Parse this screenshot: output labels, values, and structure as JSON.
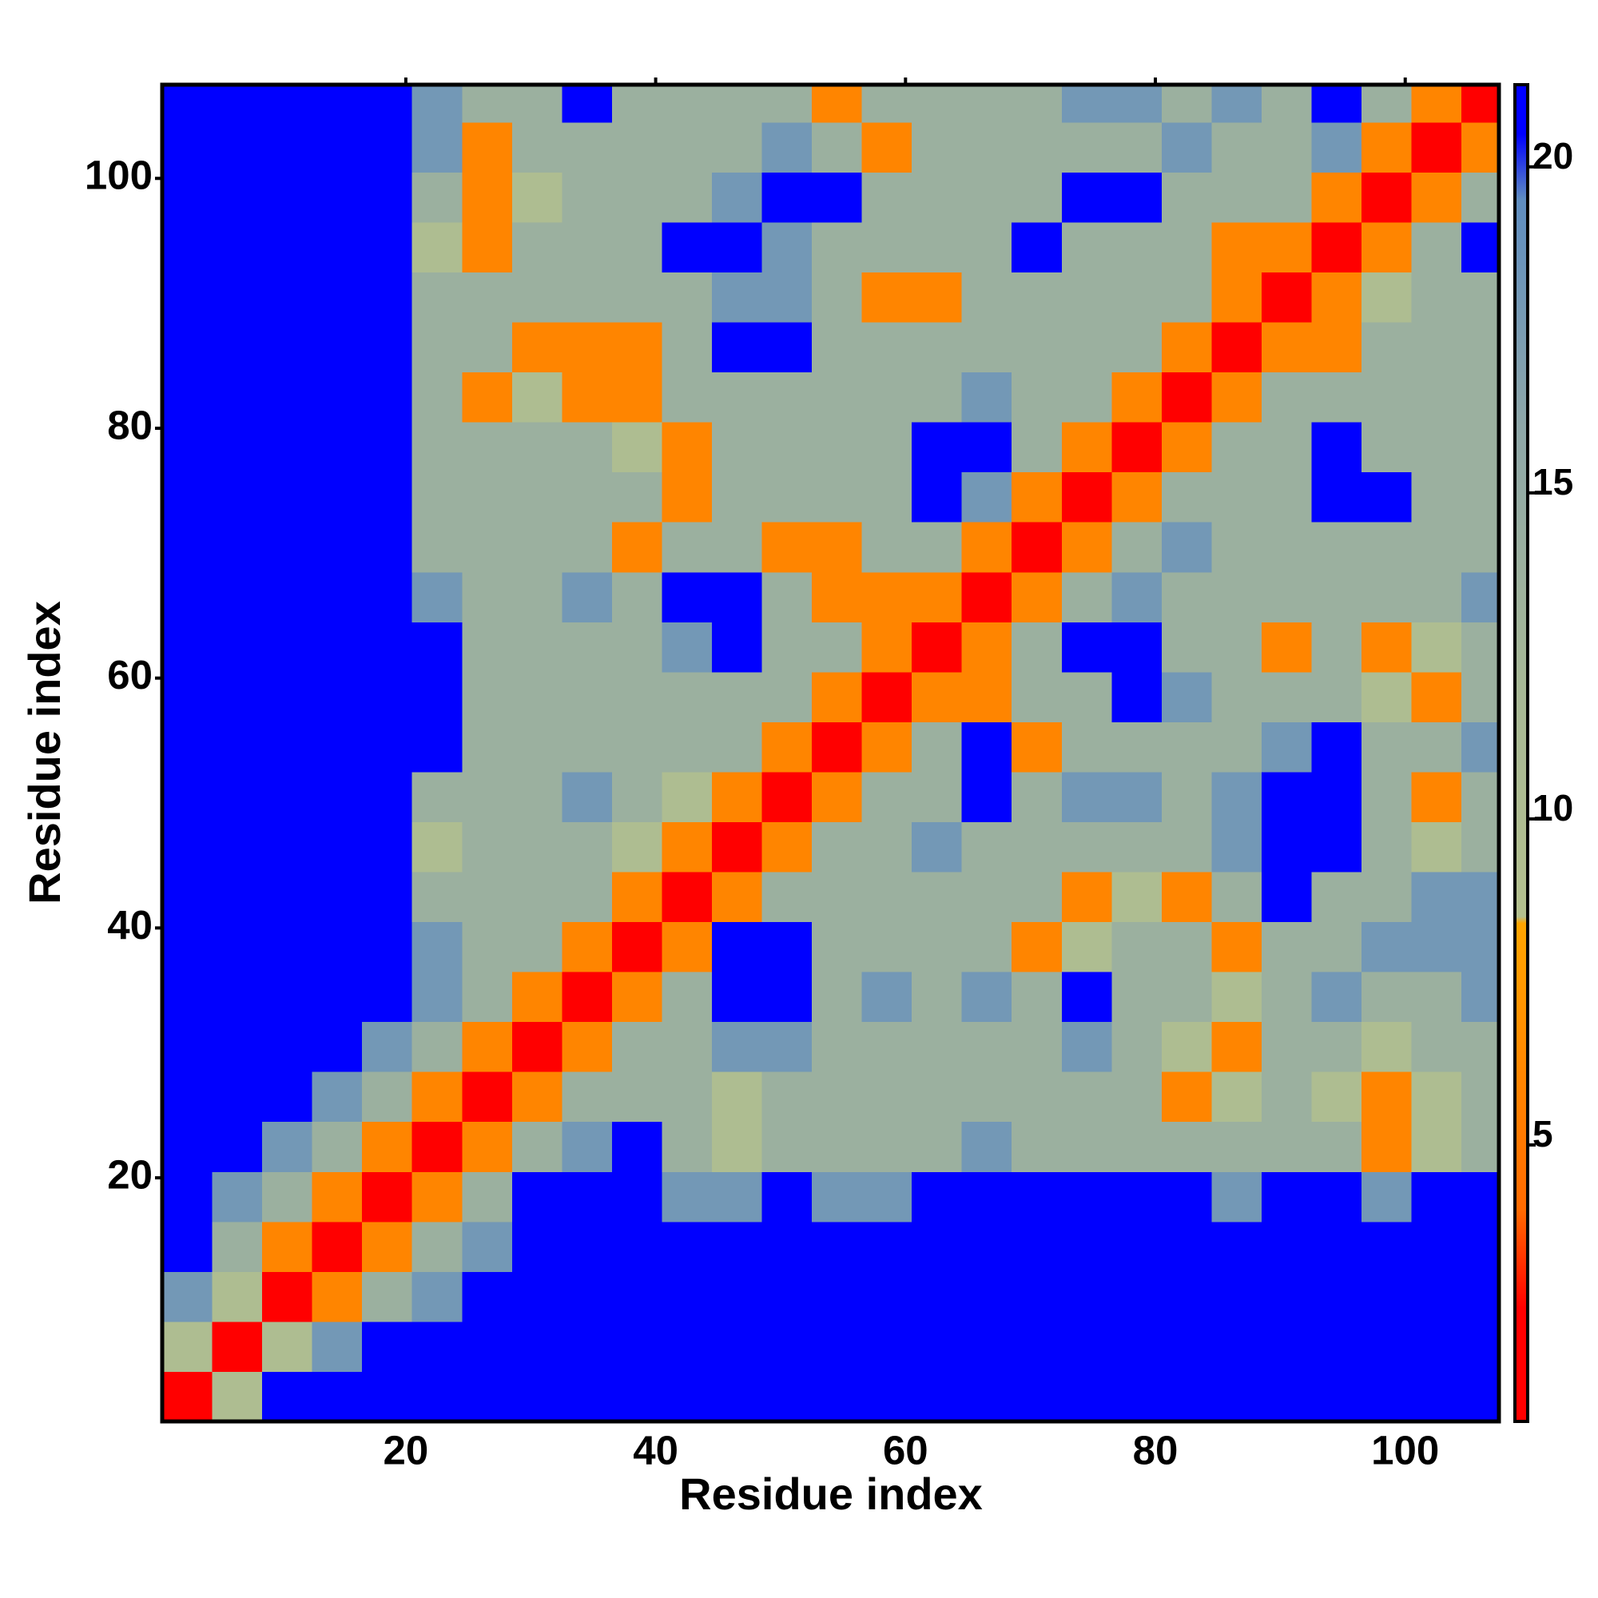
{
  "chart_data": {
    "type": "heatmap",
    "x_label": "Residue index",
    "y_label": "Residue index",
    "xlim": [
      0.5,
      107.5
    ],
    "ylim": [
      0.5,
      107.5
    ],
    "xticks": [
      20,
      40,
      60,
      80,
      100
    ],
    "yticks": [
      20,
      40,
      60,
      80,
      100
    ],
    "x_edges": [
      0.5,
      4.5,
      8.5,
      12.5,
      16.5,
      20.5,
      24.5,
      28.5,
      32.5,
      36.5,
      40.5,
      44.5,
      48.5,
      52.5,
      56.5,
      60.5,
      64.5,
      68.5,
      72.5,
      76.5,
      80.5,
      84.5,
      88.5,
      92.5,
      96.5,
      100.5,
      104.5,
      107.5
    ],
    "y_edges": [
      0.5,
      4.5,
      8.5,
      12.5,
      16.5,
      20.5,
      24.5,
      28.5,
      32.5,
      36.5,
      40.5,
      44.5,
      48.5,
      52.5,
      56.5,
      60.5,
      64.5,
      68.5,
      72.5,
      76.5,
      80.5,
      84.5,
      88.5,
      92.5,
      96.5,
      100.5,
      104.5,
      107.5
    ],
    "zlim": [
      0.76,
      21.26
    ],
    "colorbar_ticks": [
      5,
      10,
      15,
      20
    ],
    "colorscale": [
      [
        0.76,
        "#ff0000"
      ],
      [
        2.5,
        "#ff0000"
      ],
      [
        4,
        "#ff6a00"
      ],
      [
        8.4,
        "#ffa500"
      ],
      [
        8.5,
        "#b4c08e"
      ],
      [
        12,
        "#a7b896"
      ],
      [
        16,
        "#8ea7a8"
      ],
      [
        19.5,
        "#5f8dc0"
      ],
      [
        20.5,
        "#0000ff"
      ],
      [
        21.26,
        "#0000ff"
      ]
    ],
    "z": [
      [
        2,
        10,
        21,
        21,
        21,
        21,
        21,
        21,
        21,
        21,
        21,
        21,
        21,
        21,
        21,
        21,
        21,
        21,
        21,
        21,
        21,
        21,
        21,
        21,
        21,
        21,
        21
      ],
      [
        10,
        2,
        10,
        18,
        21,
        21,
        21,
        21,
        21,
        21,
        21,
        21,
        21,
        21,
        21,
        21,
        21,
        21,
        21,
        21,
        21,
        21,
        21,
        21,
        21,
        21,
        21
      ],
      [
        18,
        10,
        2,
        6,
        14,
        18,
        21,
        21,
        21,
        21,
        21,
        21,
        21,
        21,
        21,
        21,
        21,
        21,
        21,
        21,
        21,
        21,
        21,
        21,
        21,
        21,
        21
      ],
      [
        21,
        14,
        6,
        2,
        6,
        14,
        18,
        21,
        21,
        21,
        21,
        21,
        21,
        21,
        21,
        21,
        21,
        21,
        21,
        21,
        21,
        21,
        21,
        21,
        21,
        21,
        21
      ],
      [
        21,
        18,
        14,
        6,
        2,
        6,
        14,
        21,
        21,
        21,
        18,
        18,
        21,
        18,
        18,
        21,
        21,
        21,
        21,
        21,
        21,
        18,
        21,
        21,
        18,
        21,
        21
      ],
      [
        21,
        21,
        18,
        14,
        6,
        2,
        6,
        14,
        18,
        21,
        14,
        10,
        14,
        14,
        14,
        14,
        18,
        14,
        14,
        14,
        14,
        14,
        14,
        14,
        6,
        10,
        14
      ],
      [
        21,
        21,
        21,
        18,
        14,
        6,
        2,
        6,
        14,
        14,
        14,
        10,
        14,
        14,
        14,
        14,
        14,
        14,
        14,
        14,
        6,
        10,
        14,
        10,
        6,
        10,
        14
      ],
      [
        21,
        21,
        21,
        21,
        18,
        14,
        6,
        2,
        6,
        14,
        14,
        18,
        18,
        14,
        14,
        14,
        14,
        14,
        18,
        14,
        10,
        6,
        14,
        14,
        10,
        14,
        14
      ],
      [
        21,
        21,
        21,
        21,
        21,
        18,
        14,
        6,
        2,
        6,
        14,
        21,
        21,
        14,
        18,
        14,
        18,
        14,
        21,
        14,
        14,
        10,
        14,
        18,
        14,
        14,
        18
      ],
      [
        21,
        21,
        21,
        21,
        21,
        18,
        14,
        14,
        6,
        2,
        6,
        21,
        21,
        14,
        14,
        14,
        14,
        6,
        10,
        14,
        14,
        6,
        14,
        14,
        18,
        18,
        18
      ],
      [
        21,
        21,
        21,
        21,
        21,
        14,
        14,
        14,
        14,
        6,
        2,
        6,
        14,
        14,
        14,
        14,
        14,
        14,
        6,
        10,
        6,
        14,
        21,
        14,
        14,
        18,
        18
      ],
      [
        21,
        21,
        21,
        21,
        21,
        10,
        14,
        14,
        14,
        10,
        6,
        2,
        6,
        14,
        14,
        18,
        14,
        14,
        14,
        14,
        14,
        18,
        21,
        21,
        14,
        10,
        14
      ],
      [
        21,
        21,
        21,
        21,
        21,
        14,
        14,
        14,
        18,
        14,
        10,
        6,
        2,
        6,
        14,
        14,
        21,
        14,
        18,
        18,
        14,
        18,
        21,
        21,
        14,
        6,
        14
      ],
      [
        21,
        21,
        21,
        21,
        21,
        21,
        14,
        14,
        14,
        14,
        14,
        14,
        6,
        2,
        6,
        14,
        21,
        6,
        14,
        14,
        14,
        14,
        18,
        21,
        14,
        14,
        18
      ],
      [
        21,
        21,
        21,
        21,
        21,
        21,
        14,
        14,
        14,
        14,
        14,
        14,
        14,
        6,
        2,
        6,
        6,
        14,
        14,
        21,
        18,
        14,
        14,
        14,
        10,
        6,
        14
      ],
      [
        21,
        21,
        21,
        21,
        21,
        21,
        14,
        14,
        14,
        14,
        18,
        21,
        14,
        14,
        6,
        2,
        6,
        14,
        21,
        21,
        14,
        14,
        6,
        14,
        6,
        10,
        14
      ],
      [
        21,
        21,
        21,
        21,
        21,
        18,
        14,
        14,
        18,
        14,
        21,
        21,
        14,
        6,
        6,
        6,
        2,
        6,
        14,
        18,
        14,
        14,
        14,
        14,
        14,
        14,
        18
      ],
      [
        21,
        21,
        21,
        21,
        21,
        14,
        14,
        14,
        14,
        6,
        14,
        14,
        6,
        6,
        14,
        14,
        6,
        2,
        6,
        14,
        18,
        14,
        14,
        14,
        14,
        14,
        14
      ],
      [
        21,
        21,
        21,
        21,
        21,
        14,
        14,
        14,
        14,
        14,
        6,
        14,
        14,
        14,
        14,
        21,
        18,
        6,
        2,
        6,
        14,
        14,
        14,
        21,
        21,
        14,
        14
      ],
      [
        21,
        21,
        21,
        21,
        21,
        14,
        14,
        14,
        14,
        10,
        6,
        14,
        14,
        14,
        14,
        21,
        21,
        14,
        6,
        2,
        6,
        14,
        14,
        21,
        14,
        14,
        14
      ],
      [
        21,
        21,
        21,
        21,
        21,
        14,
        6,
        10,
        6,
        6,
        14,
        14,
        14,
        14,
        14,
        14,
        18,
        14,
        14,
        6,
        2,
        6,
        14,
        14,
        14,
        14,
        14
      ],
      [
        21,
        21,
        21,
        21,
        21,
        14,
        14,
        6,
        6,
        6,
        14,
        21,
        21,
        14,
        14,
        14,
        14,
        14,
        14,
        14,
        6,
        2,
        6,
        6,
        14,
        14,
        14
      ],
      [
        21,
        21,
        21,
        21,
        21,
        14,
        14,
        14,
        14,
        14,
        14,
        18,
        18,
        14,
        6,
        6,
        14,
        14,
        14,
        14,
        14,
        6,
        2,
        6,
        10,
        14,
        14
      ],
      [
        21,
        21,
        21,
        21,
        21,
        10,
        6,
        14,
        14,
        14,
        21,
        21,
        18,
        14,
        14,
        14,
        14,
        21,
        14,
        14,
        14,
        6,
        6,
        2,
        6,
        14,
        21
      ],
      [
        21,
        21,
        21,
        21,
        21,
        14,
        6,
        10,
        14,
        14,
        14,
        18,
        21,
        21,
        14,
        14,
        14,
        14,
        21,
        21,
        14,
        14,
        14,
        6,
        2,
        6,
        14
      ],
      [
        21,
        21,
        21,
        21,
        21,
        18,
        6,
        14,
        14,
        14,
        14,
        14,
        18,
        14,
        6,
        14,
        14,
        14,
        14,
        14,
        18,
        14,
        14,
        18,
        6,
        2,
        6
      ],
      [
        21,
        21,
        21,
        21,
        21,
        18,
        14,
        14,
        21,
        14,
        14,
        14,
        14,
        6,
        14,
        14,
        14,
        14,
        18,
        18,
        14,
        18,
        14,
        21,
        14,
        6,
        2
      ]
    ]
  }
}
